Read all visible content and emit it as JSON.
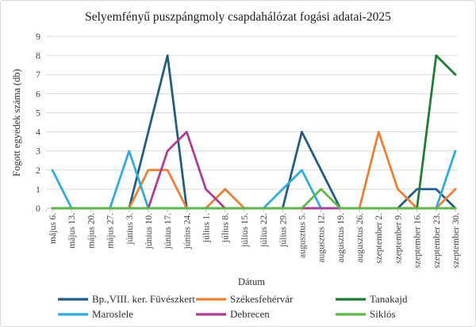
{
  "chart_data": {
    "type": "line",
    "title": "Selyemfényű puszpángmoly csapdahálózat fogási adatai-2025",
    "ylabel": "Fogott egyedek száma (db)",
    "xlabel": "Dátum",
    "ylim": [
      0,
      9
    ],
    "yticks": [
      0,
      1,
      2,
      3,
      4,
      5,
      6,
      7,
      8,
      9
    ],
    "grid": true,
    "legend_position": "bottom",
    "categories": [
      "május 6.",
      "május 13.",
      "május 20.",
      "május 27.",
      "június 3.",
      "június 10.",
      "június 17.",
      "június 24.",
      "július 1.",
      "július 8.",
      "július 15.",
      "július 22.",
      "július 29.",
      "augusztus 5.",
      "augusztus 12.",
      "augusztus 19.",
      "augusztus 26.",
      "szeptember 2.",
      "szeptember 9.",
      "szeptember 16.",
      "szeptember 23.",
      "szeptember 30."
    ],
    "series": [
      {
        "name": "Bp.,VIII. ker. Füvészkert",
        "color": "#1E5C83",
        "values": [
          0,
          0,
          0,
          0,
          0,
          4,
          8,
          0,
          0,
          0,
          0,
          0,
          0,
          4,
          2,
          0,
          0,
          0,
          0,
          1,
          1,
          0
        ]
      },
      {
        "name": "Székesfehérvár",
        "color": "#ED7D31",
        "values": [
          0,
          0,
          0,
          0,
          0,
          2,
          2,
          0,
          0,
          1,
          0,
          0,
          0,
          0,
          0,
          0,
          0,
          4,
          1,
          0,
          0,
          1
        ]
      },
      {
        "name": "Tanakajd",
        "color": "#1E7B34",
        "values": [
          0,
          0,
          0,
          0,
          0,
          0,
          0,
          0,
          0,
          0,
          0,
          0,
          0,
          0,
          0,
          0,
          0,
          0,
          0,
          0,
          8,
          7
        ]
      },
      {
        "name": "Maroslele",
        "color": "#2EAAE1",
        "values": [
          2,
          0,
          0,
          0,
          3,
          0,
          0,
          0,
          0,
          0,
          0,
          0,
          1,
          2,
          0,
          0,
          0,
          0,
          0,
          0,
          0,
          3
        ]
      },
      {
        "name": "Debrecen",
        "color": "#AE3A94",
        "values": [
          0,
          0,
          0,
          0,
          0,
          0,
          3,
          4,
          1,
          0,
          0,
          0,
          0,
          0,
          0,
          0,
          0,
          0,
          0,
          0,
          0,
          0
        ]
      },
      {
        "name": "Siklós",
        "color": "#5CB946",
        "values": [
          0,
          0,
          0,
          0,
          0,
          0,
          0,
          0,
          0,
          0,
          0,
          0,
          0,
          0,
          1,
          0,
          0,
          0,
          0,
          0,
          0,
          0
        ]
      }
    ]
  }
}
